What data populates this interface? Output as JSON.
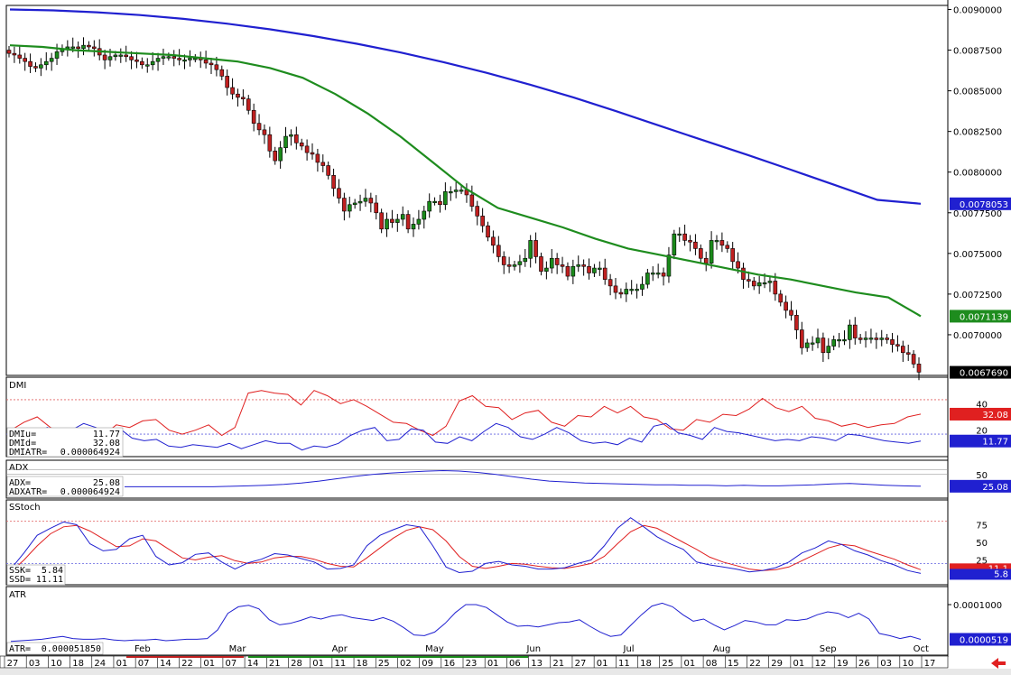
{
  "chart_data": {
    "type": "candlestick",
    "colors": {
      "up": "#1a8a1a",
      "down": "#c02020",
      "ma_fast": "#1e8c1e",
      "ma_slow": "#2020d0",
      "line_a": "#e02020",
      "line_b": "#2020d0",
      "ref": "#e06060",
      "ref2": "#6060e0"
    },
    "price": {
      "ylim": [
        0.00675,
        0.009025
      ],
      "ticks": [
        "0.0090000",
        "0.0087500",
        "0.0085000",
        "0.0082500",
        "0.0080000",
        "0.0077500",
        "0.0075000",
        "0.0072500",
        "0.0070000"
      ],
      "tick_values": [
        0.009,
        0.00875,
        0.0085,
        0.00825,
        0.008,
        0.00775,
        0.0075,
        0.00725,
        0.007
      ],
      "last_close": "0.0067690",
      "last_close_value": 0.006769,
      "ma_slow_label": "0.0078053",
      "ma_slow_value": 0.0078053,
      "ma_fast_label": "0.0071139",
      "ma_fast_value": 0.0071139,
      "closes": [
        0.00873,
        0.00872,
        0.0087,
        0.00868,
        0.00865,
        0.00864,
        0.00866,
        0.00868,
        0.0087,
        0.00874,
        0.00876,
        0.00877,
        0.00877,
        0.00876,
        0.00878,
        0.00877,
        0.00876,
        0.00872,
        0.00869,
        0.00871,
        0.00872,
        0.00872,
        0.00871,
        0.00869,
        0.00868,
        0.00866,
        0.00866,
        0.00868,
        0.0087,
        0.00871,
        0.00871,
        0.0087,
        0.00869,
        0.00869,
        0.0087,
        0.0087,
        0.00869,
        0.00867,
        0.00866,
        0.00863,
        0.00859,
        0.00852,
        0.00848,
        0.00846,
        0.00845,
        0.00838,
        0.0083,
        0.00826,
        0.00823,
        0.00813,
        0.00807,
        0.00815,
        0.00822,
        0.00823,
        0.00818,
        0.00816,
        0.00812,
        0.00811,
        0.00806,
        0.00804,
        0.00798,
        0.0079,
        0.00784,
        0.00776,
        0.0078,
        0.00781,
        0.00782,
        0.00784,
        0.00781,
        0.00775,
        0.00765,
        0.00771,
        0.00769,
        0.00771,
        0.00774,
        0.00765,
        0.00768,
        0.00771,
        0.00776,
        0.00782,
        0.00782,
        0.0078,
        0.00788,
        0.00788,
        0.00789,
        0.00789,
        0.00786,
        0.00779,
        0.00773,
        0.00767,
        0.0076,
        0.00755,
        0.00748,
        0.00743,
        0.00742,
        0.00743,
        0.00745,
        0.00747,
        0.00758,
        0.00748,
        0.00739,
        0.00741,
        0.00747,
        0.00743,
        0.00742,
        0.00736,
        0.00742,
        0.00743,
        0.00742,
        0.00738,
        0.00741,
        0.00741,
        0.00734,
        0.0073,
        0.00726,
        0.00725,
        0.00728,
        0.00728,
        0.00728,
        0.00731,
        0.00738,
        0.00738,
        0.00738,
        0.00736,
        0.00749,
        0.00762,
        0.00762,
        0.00758,
        0.00757,
        0.00753,
        0.00747,
        0.00744,
        0.00758,
        0.00758,
        0.00755,
        0.00753,
        0.00745,
        0.00741,
        0.00734,
        0.00733,
        0.0073,
        0.00732,
        0.00732,
        0.00733,
        0.00725,
        0.0072,
        0.00715,
        0.00712,
        0.00703,
        0.00692,
        0.00695,
        0.00695,
        0.00698,
        0.00689,
        0.00693,
        0.00697,
        0.00697,
        0.00697,
        0.00706,
        0.00698,
        0.00697,
        0.00698,
        0.00698,
        0.00697,
        0.00698,
        0.00697,
        0.00694,
        0.00693,
        0.00689,
        0.00688,
        0.00682,
        0.00677
      ],
      "ma_slow": [
        0.009,
        0.0089943,
        0.0089828,
        0.0089655,
        0.0089423,
        0.0089129,
        0.0088778,
        0.0088366,
        0.0087894,
        0.008736,
        0.0086761,
        0.00861,
        0.0085373,
        0.0084583,
        0.0083727,
        0.0082829,
        0.0081944,
        0.008106,
        0.008015,
        0.0079226,
        0.007829,
        0.0078053
      ],
      "ma_fast": [
        0.00878,
        0.00877,
        0.00875,
        0.00874,
        0.00873,
        0.00872,
        0.0087,
        0.00868,
        0.00864,
        0.00858,
        0.00848,
        0.00836,
        0.00822,
        0.00806,
        0.0079,
        0.00778,
        0.00772,
        0.00766,
        0.00759,
        0.00753,
        0.00749,
        0.00745,
        0.00741,
        0.00737,
        0.00734,
        0.0073,
        0.00726,
        0.00723,
        0.0071139
      ]
    },
    "dmi": {
      "label": "DMI",
      "ylim": [
        0,
        60
      ],
      "ticks": [
        "40",
        "20"
      ],
      "tick_values": [
        40,
        20
      ],
      "ref": 43,
      "ref2": 17,
      "readout": [
        {
          "k": "DMIu=",
          "v": "11.77"
        },
        {
          "k": "DMId=",
          "v": "32.08"
        },
        {
          "k": "DMIATR=",
          "v": "0.000064924"
        }
      ],
      "badge_up": "32.08",
      "badge_up_value": 32.08,
      "badge_down": "11.77",
      "badge_down_value": 11.77,
      "u": [
        10,
        12,
        17,
        22,
        18,
        20,
        25,
        22,
        17,
        21,
        14,
        12,
        13,
        8,
        7,
        9,
        8,
        7,
        10,
        6,
        9,
        12,
        10,
        10,
        5,
        8,
        7,
        10,
        16,
        20,
        22,
        12,
        13,
        21,
        20,
        11,
        10,
        15,
        12,
        19,
        25,
        22,
        15,
        13,
        17,
        22,
        18,
        12,
        10,
        11,
        9,
        14,
        11,
        23,
        25,
        18,
        16,
        13,
        22,
        19,
        18,
        16,
        14,
        12,
        13,
        12,
        15,
        14,
        12,
        17,
        16,
        14,
        12,
        11,
        10,
        11.77
      ],
      "d": [
        20,
        26,
        30,
        22,
        18,
        19,
        20,
        16,
        24,
        22,
        27,
        28,
        20,
        17,
        20,
        24,
        16,
        22,
        48,
        50,
        48,
        47,
        39,
        50,
        46,
        40,
        43,
        38,
        32,
        26,
        25,
        20,
        16,
        23,
        42,
        46,
        38,
        37,
        28,
        33,
        35,
        26,
        23,
        31,
        30,
        38,
        33,
        38,
        30,
        28,
        21,
        20,
        28,
        26,
        32,
        31,
        36,
        44,
        37,
        34,
        38,
        29,
        27,
        23,
        25,
        22,
        24,
        25,
        30,
        32.08
      ]
    },
    "adx": {
      "label": "ADX",
      "ylim": [
        0,
        80
      ],
      "ticks": [
        "50"
      ],
      "tick_values": [
        50
      ],
      "ref": 60,
      "ref2": 50,
      "readout": [
        {
          "k": "ADX=",
          "v": "25.08"
        },
        {
          "k": "ADXATR=",
          "v": "0.000064924"
        }
      ],
      "badge": "25.08",
      "badge_value": 25.08,
      "v": [
        24,
        24,
        24,
        24,
        24,
        24,
        25,
        26,
        27,
        29,
        32,
        36,
        41,
        46,
        50,
        53,
        55,
        57,
        58,
        57,
        54,
        50,
        45,
        40,
        36,
        34,
        32,
        31,
        30,
        29,
        28,
        28,
        27,
        27,
        26,
        27,
        26,
        26,
        27,
        28,
        30,
        31,
        29,
        27,
        26,
        25.08
      ]
    },
    "stoch": {
      "label": "SStoch",
      "ylim": [
        0,
        100
      ],
      "ticks": [
        "75",
        "50",
        "25"
      ],
      "tick_values": [
        75,
        50,
        25
      ],
      "ref": 80,
      "ref2": 20,
      "readout": [
        {
          "k": "SSK=",
          "v": "5.84"
        },
        {
          "k": "SSD=",
          "v": "11.11"
        }
      ],
      "badge_d": "11.1",
      "badge_d_value": 11.11,
      "badge_k": "5.8",
      "badge_k_value": 5.84,
      "k": [
        12,
        35,
        60,
        70,
        79,
        75,
        48,
        38,
        40,
        55,
        60,
        30,
        18,
        21,
        33,
        35,
        22,
        12,
        21,
        26,
        34,
        32,
        27,
        22,
        12,
        13,
        18,
        45,
        60,
        68,
        75,
        72,
        45,
        15,
        7,
        9,
        20,
        23,
        18,
        16,
        12,
        12,
        14,
        20,
        25,
        45,
        70,
        85,
        72,
        58,
        48,
        40,
        22,
        18,
        15,
        12,
        8,
        10,
        14,
        22,
        35,
        42,
        52,
        47,
        38,
        32,
        24,
        18,
        10,
        5.84
      ],
      "d": [
        8,
        25,
        45,
        62,
        72,
        74,
        66,
        55,
        44,
        45,
        55,
        52,
        40,
        28,
        25,
        29,
        31,
        24,
        20,
        22,
        28,
        30,
        30,
        26,
        20,
        16,
        15,
        28,
        42,
        56,
        67,
        72,
        68,
        52,
        30,
        16,
        13,
        16,
        20,
        19,
        16,
        14,
        13,
        16,
        20,
        30,
        48,
        65,
        74,
        70,
        60,
        50,
        40,
        29,
        22,
        17,
        12,
        10,
        11,
        15,
        24,
        33,
        42,
        47,
        45,
        38,
        32,
        26,
        18,
        11.11
      ]
    },
    "atr": {
      "label": "ATR",
      "ylim": [
        3e-05,
        0.000125
      ],
      "ticks": [
        "0.0001000"
      ],
      "tick_values": [
        0.0001
      ],
      "readout": [
        {
          "k": "ATR=",
          "v": "0.000051850"
        }
      ],
      "badge": "0.0000519",
      "badge_value": 5.19e-05,
      "v": [
        4.9e-05,
        5e-05,
        5.1e-05,
        5.2e-05,
        5.4e-05,
        5.6e-05,
        5.3e-05,
        5.2e-05,
        5.2e-05,
        5.3e-05,
        5.1e-05,
        5e-05,
        5.1e-05,
        5.1e-05,
        5.2e-05,
        5e-05,
        5.1e-05,
        5.2e-05,
        5.2e-05,
        5.3e-05,
        6.5e-05,
        8.8e-05,
        9.7e-05,
        9.9e-05,
        9.4e-05,
        7.9e-05,
        7.2e-05,
        7.4e-05,
        7.8e-05,
        8.3e-05,
        8e-05,
        8.4e-05,
        8.6e-05,
        8.2e-05,
        8e-05,
        7.8e-05,
        8.2e-05,
        7.7e-05,
        6.8e-05,
        5.8e-05,
        5.7e-05,
        6.2e-05,
        7.4e-05,
        8.9e-05,
        0.0001,
        0.0001,
        9.6e-05,
        8.6e-05,
        7.6e-05,
        7e-05,
        7.1e-05,
        6.9e-05,
        7.2e-05,
        7.5e-05,
        7.6e-05,
        7.9e-05,
        7e-05,
        6.2e-05,
        5.6e-05,
        5.8e-05,
        7.2e-05,
        8.6e-05,
        9.8e-05,
        0.000102,
        9.7e-05,
        8.6e-05,
        7.7e-05,
        8e-05,
        7.2e-05,
        6.5e-05,
        7.1e-05,
        7.8e-05,
        7.6e-05,
        7.2e-05,
        7.2e-05,
        7.9e-05,
        7.8e-05,
        8e-05,
        8.6e-05,
        9e-05,
        8.8e-05,
        8.2e-05,
        8.8e-05,
        8e-05,
        6e-05,
        5.7e-05,
        5.3e-05,
        5.6e-05,
        5.19e-05
      ]
    },
    "x_axis": {
      "days": [
        "27",
        "03",
        "10",
        "18",
        "24",
        "01",
        "07",
        "14",
        "22",
        "01",
        "07",
        "14",
        "21",
        "28",
        "01",
        "11",
        "18",
        "25",
        "02",
        "09",
        "16",
        "23",
        "01",
        "06",
        "13",
        "21",
        "27",
        "01",
        "11",
        "18",
        "25",
        "01",
        "08",
        "15",
        "22",
        "29",
        "01",
        "12",
        "19",
        "26",
        "03",
        "10",
        "17"
      ],
      "day_colors": [
        "#000",
        "#000",
        "#000",
        "#000",
        "#000",
        "#000",
        "#000",
        "#000",
        "#000",
        "#000",
        "#000",
        "#000",
        "#000",
        "#000",
        "#000",
        "#000",
        "#000",
        "#000",
        "#000",
        "#000",
        "#000",
        "#000",
        "#000",
        "#000",
        "#000",
        "#000",
        "#000",
        "#000",
        "#000",
        "#000",
        "#000",
        "#000",
        "#000",
        "#000",
        "#000",
        "#000",
        "#000",
        "#000",
        "#000",
        "#000",
        "#000",
        "#000",
        "#000"
      ],
      "months": [
        "Feb",
        "Mar",
        "Apr",
        "May",
        "Jun",
        "Jul",
        "Aug",
        "Sep",
        "Oct"
      ]
    }
  }
}
